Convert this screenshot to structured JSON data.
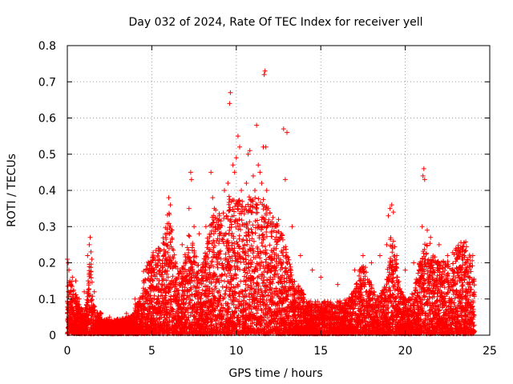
{
  "chart_data": {
    "type": "scatter",
    "title": "Day 032 of 2024, Rate Of TEC Index for receiver yell",
    "xlabel": "GPS time / hours",
    "ylabel": "ROTI / TECUs",
    "xlim": [
      0,
      25
    ],
    "ylim": [
      0,
      0.8
    ],
    "xticks": [
      0,
      5,
      10,
      15,
      20,
      25
    ],
    "xtick_labels": [
      "0",
      "5",
      "10",
      "15",
      "20",
      "25"
    ],
    "yticks": [
      0,
      0.1,
      0.2,
      0.3,
      0.4,
      0.5,
      0.6,
      0.7,
      0.8
    ],
    "ytick_labels": [
      "0",
      "0.1",
      "0.2",
      "0.3",
      "0.4",
      "0.5",
      "0.6",
      "0.7",
      "0.8"
    ],
    "grid": true,
    "marker": "+",
    "color": "#ff0000",
    "series": [
      {
        "name": "ROTI",
        "points": [
          [
            0.0,
            0.21
          ],
          [
            0.05,
            0.2
          ],
          [
            0.1,
            0.18
          ],
          [
            0.15,
            0.15
          ],
          [
            0.2,
            0.12
          ],
          [
            0.3,
            0.16
          ],
          [
            0.5,
            0.15
          ],
          [
            0.7,
            0.1
          ],
          [
            0.9,
            0.07
          ],
          [
            1.0,
            0.12
          ],
          [
            1.2,
            0.22
          ],
          [
            1.3,
            0.25
          ],
          [
            1.35,
            0.27
          ],
          [
            1.4,
            0.23
          ],
          [
            1.45,
            0.21
          ],
          [
            1.6,
            0.12
          ],
          [
            2.0,
            0.06
          ],
          [
            2.5,
            0.05
          ],
          [
            3.0,
            0.04
          ],
          [
            3.5,
            0.06
          ],
          [
            4.0,
            0.1
          ],
          [
            4.5,
            0.15
          ],
          [
            4.8,
            0.18
          ],
          [
            5.0,
            0.2
          ],
          [
            5.3,
            0.17
          ],
          [
            5.7,
            0.22
          ],
          [
            6.0,
            0.38
          ],
          [
            6.1,
            0.36
          ],
          [
            6.2,
            0.29
          ],
          [
            6.8,
            0.25
          ],
          [
            7.2,
            0.35
          ],
          [
            7.3,
            0.45
          ],
          [
            7.35,
            0.43
          ],
          [
            7.5,
            0.3
          ],
          [
            7.8,
            0.28
          ],
          [
            8.2,
            0.3
          ],
          [
            8.5,
            0.45
          ],
          [
            8.6,
            0.38
          ],
          [
            8.7,
            0.35
          ],
          [
            9.0,
            0.33
          ],
          [
            9.3,
            0.4
          ],
          [
            9.5,
            0.42
          ],
          [
            9.6,
            0.64
          ],
          [
            9.65,
            0.67
          ],
          [
            9.8,
            0.47
          ],
          [
            9.9,
            0.45
          ],
          [
            10.0,
            0.49
          ],
          [
            10.1,
            0.55
          ],
          [
            10.2,
            0.52
          ],
          [
            10.3,
            0.4
          ],
          [
            10.6,
            0.42
          ],
          [
            10.7,
            0.5
          ],
          [
            10.8,
            0.51
          ],
          [
            11.0,
            0.44
          ],
          [
            11.1,
            0.4
          ],
          [
            11.2,
            0.58
          ],
          [
            11.3,
            0.47
          ],
          [
            11.4,
            0.45
          ],
          [
            11.5,
            0.42
          ],
          [
            11.6,
            0.52
          ],
          [
            11.65,
            0.72
          ],
          [
            11.7,
            0.73
          ],
          [
            11.75,
            0.52
          ],
          [
            11.8,
            0.4
          ],
          [
            11.9,
            0.35
          ],
          [
            12.5,
            0.32
          ],
          [
            12.8,
            0.57
          ],
          [
            12.9,
            0.43
          ],
          [
            13.0,
            0.56
          ],
          [
            13.3,
            0.3
          ],
          [
            13.8,
            0.22
          ],
          [
            14.5,
            0.18
          ],
          [
            15.0,
            0.16
          ],
          [
            16.0,
            0.14
          ],
          [
            17.0,
            0.18
          ],
          [
            17.5,
            0.22
          ],
          [
            18.0,
            0.2
          ],
          [
            18.5,
            0.22
          ],
          [
            18.9,
            0.25
          ],
          [
            19.0,
            0.33
          ],
          [
            19.1,
            0.35
          ],
          [
            19.2,
            0.36
          ],
          [
            19.3,
            0.34
          ],
          [
            19.5,
            0.22
          ],
          [
            20.0,
            0.18
          ],
          [
            20.5,
            0.2
          ],
          [
            21.0,
            0.3
          ],
          [
            21.05,
            0.44
          ],
          [
            21.1,
            0.46
          ],
          [
            21.15,
            0.43
          ],
          [
            21.3,
            0.29
          ],
          [
            21.5,
            0.27
          ],
          [
            22.0,
            0.25
          ],
          [
            22.5,
            0.22
          ],
          [
            23.0,
            0.24
          ],
          [
            23.5,
            0.23
          ],
          [
            24.0,
            0.22
          ]
        ]
      }
    ]
  }
}
